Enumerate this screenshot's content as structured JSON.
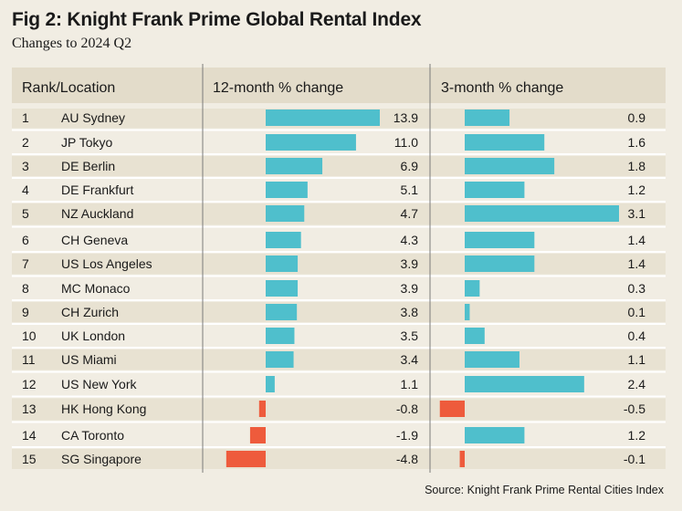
{
  "title": "Fig 2: Knight Frank Prime Global Rental Index",
  "subtitle": "Changes to 2024 Q2",
  "source": "Source: Knight Frank Prime Rental Cities Index",
  "colors": {
    "background": "#f1ede3",
    "header_band": "#e3dcca",
    "row_band": "#e8e2d2",
    "positive": "#4fbfcc",
    "negative": "#ee5b3c"
  },
  "chart_data": {
    "type": "bar",
    "column_headers": [
      "Rank/Location",
      "12-month % change",
      "3-month % change"
    ],
    "rows": [
      {
        "rank": "1",
        "location": "AU Sydney",
        "m12": 13.9,
        "m3": 0.9
      },
      {
        "rank": "2",
        "location": "JP Tokyo",
        "m12": 11.0,
        "m3": 1.6
      },
      {
        "rank": "3",
        "location": "DE Berlin",
        "m12": 6.9,
        "m3": 1.8
      },
      {
        "rank": "4",
        "location": "DE Frankfurt",
        "m12": 5.1,
        "m3": 1.2
      },
      {
        "rank": "5",
        "location": "NZ Auckland",
        "m12": 4.7,
        "m3": 3.1
      },
      {
        "rank": "6",
        "location": "CH Geneva",
        "m12": 4.3,
        "m3": 1.4
      },
      {
        "rank": "7",
        "location": "US Los Angeles",
        "m12": 3.9,
        "m3": 1.4
      },
      {
        "rank": "8",
        "location": "MC Monaco",
        "m12": 3.9,
        "m3": 0.3
      },
      {
        "rank": "9",
        "location": "CH Zurich",
        "m12": 3.8,
        "m3": 0.1
      },
      {
        "rank": "10",
        "location": "UK London",
        "m12": 3.5,
        "m3": 0.4
      },
      {
        "rank": "11",
        "location": "US Miami",
        "m12": 3.4,
        "m3": 1.1
      },
      {
        "rank": "12",
        "location": "US New York",
        "m12": 1.1,
        "m3": 2.4
      },
      {
        "rank": "13",
        "location": "HK Hong Kong",
        "m12": -0.8,
        "m3": -0.5
      },
      {
        "rank": "14",
        "location": "CA Toronto",
        "m12": -1.9,
        "m3": 1.2
      },
      {
        "rank": "15",
        "location": "SG Singapore",
        "m12": -4.8,
        "m3": -0.1
      }
    ]
  }
}
